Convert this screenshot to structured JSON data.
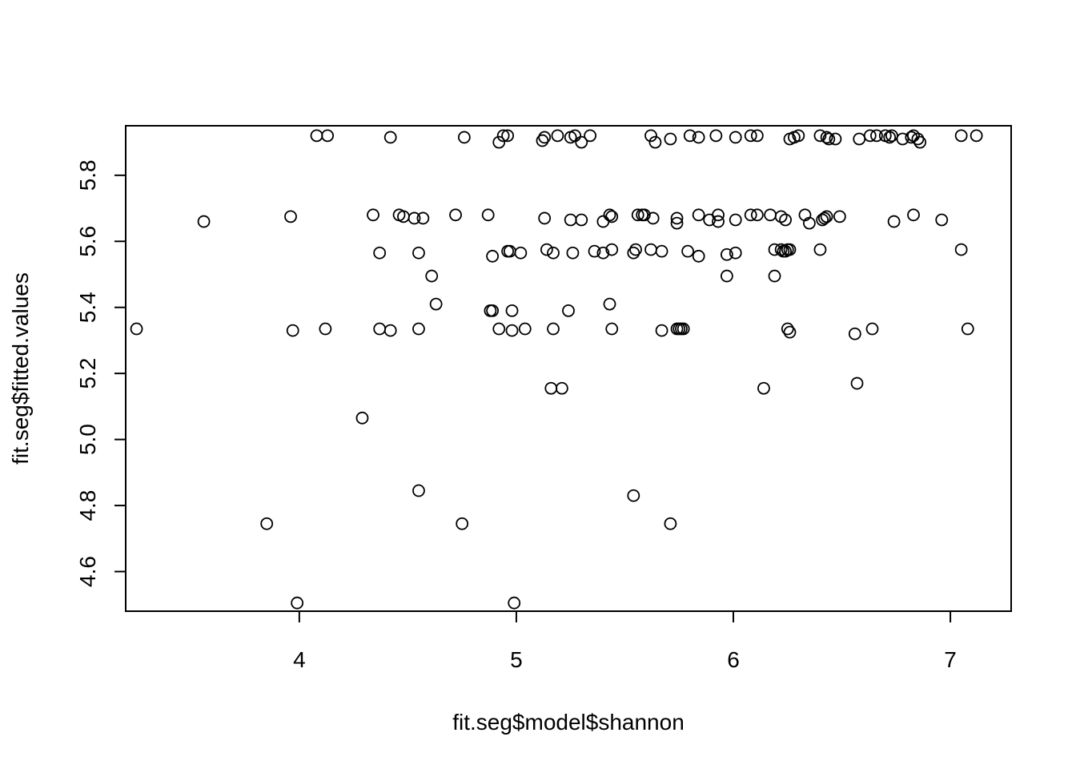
{
  "chart_data": {
    "type": "scatter",
    "title": "",
    "xlabel": "fit.seg$model$shannon",
    "ylabel": "fit.seg$fitted.values",
    "xlim": [
      3.2,
      7.28
    ],
    "ylim": [
      4.48,
      5.95
    ],
    "xticks": [
      4,
      5,
      6,
      7
    ],
    "yticks": [
      4.6,
      4.8,
      5.0,
      5.2,
      5.4,
      5.6,
      5.8
    ],
    "ytick_labels": [
      "4.6",
      "4.8",
      "5.0",
      "5.2",
      "5.4",
      "5.6",
      "5.8"
    ],
    "grid": false,
    "marker": "open-circle",
    "points": [
      [
        4.08,
        5.92
      ],
      [
        4.13,
        5.92
      ],
      [
        4.42,
        5.915
      ],
      [
        4.76,
        5.915
      ],
      [
        4.92,
        5.9
      ],
      [
        4.94,
        5.92
      ],
      [
        4.96,
        5.92
      ],
      [
        5.12,
        5.905
      ],
      [
        5.13,
        5.915
      ],
      [
        5.19,
        5.92
      ],
      [
        5.25,
        5.915
      ],
      [
        5.27,
        5.92
      ],
      [
        5.3,
        5.9
      ],
      [
        5.34,
        5.92
      ],
      [
        5.62,
        5.92
      ],
      [
        5.64,
        5.9
      ],
      [
        5.71,
        5.91
      ],
      [
        5.8,
        5.92
      ],
      [
        5.84,
        5.915
      ],
      [
        5.92,
        5.92
      ],
      [
        6.01,
        5.915
      ],
      [
        6.08,
        5.92
      ],
      [
        6.11,
        5.92
      ],
      [
        6.26,
        5.91
      ],
      [
        6.28,
        5.915
      ],
      [
        6.3,
        5.92
      ],
      [
        6.4,
        5.92
      ],
      [
        6.43,
        5.915
      ],
      [
        6.44,
        5.91
      ],
      [
        6.47,
        5.91
      ],
      [
        6.58,
        5.91
      ],
      [
        6.63,
        5.92
      ],
      [
        6.66,
        5.92
      ],
      [
        6.7,
        5.92
      ],
      [
        6.72,
        5.915
      ],
      [
        6.73,
        5.92
      ],
      [
        6.78,
        5.91
      ],
      [
        6.82,
        5.915
      ],
      [
        6.83,
        5.92
      ],
      [
        6.85,
        5.91
      ],
      [
        6.86,
        5.9
      ],
      [
        7.05,
        5.92
      ],
      [
        7.12,
        5.92
      ],
      [
        3.56,
        5.66
      ],
      [
        3.96,
        5.675
      ],
      [
        4.34,
        5.68
      ],
      [
        4.46,
        5.68
      ],
      [
        4.48,
        5.675
      ],
      [
        4.53,
        5.67
      ],
      [
        4.57,
        5.67
      ],
      [
        4.72,
        5.68
      ],
      [
        4.87,
        5.68
      ],
      [
        5.13,
        5.67
      ],
      [
        5.25,
        5.665
      ],
      [
        5.3,
        5.665
      ],
      [
        5.4,
        5.66
      ],
      [
        5.43,
        5.68
      ],
      [
        5.44,
        5.675
      ],
      [
        5.56,
        5.68
      ],
      [
        5.58,
        5.68
      ],
      [
        5.59,
        5.68
      ],
      [
        5.63,
        5.67
      ],
      [
        5.74,
        5.67
      ],
      [
        5.74,
        5.655
      ],
      [
        5.84,
        5.68
      ],
      [
        5.89,
        5.665
      ],
      [
        5.93,
        5.68
      ],
      [
        5.93,
        5.66
      ],
      [
        6.01,
        5.665
      ],
      [
        6.08,
        5.68
      ],
      [
        6.11,
        5.68
      ],
      [
        6.17,
        5.68
      ],
      [
        6.22,
        5.675
      ],
      [
        6.24,
        5.665
      ],
      [
        6.33,
        5.68
      ],
      [
        6.35,
        5.655
      ],
      [
        6.41,
        5.665
      ],
      [
        6.42,
        5.67
      ],
      [
        6.43,
        5.675
      ],
      [
        6.49,
        5.675
      ],
      [
        6.74,
        5.66
      ],
      [
        6.83,
        5.68
      ],
      [
        6.96,
        5.665
      ],
      [
        4.37,
        5.565
      ],
      [
        4.55,
        5.565
      ],
      [
        4.89,
        5.555
      ],
      [
        4.96,
        5.57
      ],
      [
        4.97,
        5.57
      ],
      [
        5.02,
        5.565
      ],
      [
        5.14,
        5.575
      ],
      [
        5.17,
        5.565
      ],
      [
        5.26,
        5.565
      ],
      [
        5.36,
        5.57
      ],
      [
        5.4,
        5.565
      ],
      [
        5.44,
        5.575
      ],
      [
        5.54,
        5.565
      ],
      [
        5.55,
        5.575
      ],
      [
        5.62,
        5.575
      ],
      [
        5.67,
        5.57
      ],
      [
        5.79,
        5.57
      ],
      [
        5.84,
        5.555
      ],
      [
        5.97,
        5.56
      ],
      [
        6.01,
        5.565
      ],
      [
        6.19,
        5.575
      ],
      [
        6.22,
        5.575
      ],
      [
        6.23,
        5.57
      ],
      [
        6.24,
        5.57
      ],
      [
        6.25,
        5.575
      ],
      [
        6.26,
        5.575
      ],
      [
        6.4,
        5.575
      ],
      [
        7.05,
        5.575
      ],
      [
        4.61,
        5.495
      ],
      [
        5.97,
        5.495
      ],
      [
        6.19,
        5.495
      ],
      [
        4.63,
        5.41
      ],
      [
        4.88,
        5.39
      ],
      [
        4.89,
        5.39
      ],
      [
        4.98,
        5.39
      ],
      [
        5.24,
        5.39
      ],
      [
        5.43,
        5.41
      ],
      [
        3.25,
        5.335
      ],
      [
        3.97,
        5.33
      ],
      [
        4.12,
        5.335
      ],
      [
        4.37,
        5.335
      ],
      [
        4.42,
        5.33
      ],
      [
        4.55,
        5.335
      ],
      [
        4.92,
        5.335
      ],
      [
        4.98,
        5.33
      ],
      [
        5.04,
        5.335
      ],
      [
        5.17,
        5.335
      ],
      [
        5.44,
        5.335
      ],
      [
        5.67,
        5.33
      ],
      [
        5.74,
        5.335
      ],
      [
        5.75,
        5.335
      ],
      [
        5.76,
        5.335
      ],
      [
        5.77,
        5.335
      ],
      [
        6.25,
        5.335
      ],
      [
        6.26,
        5.325
      ],
      [
        6.56,
        5.32
      ],
      [
        6.64,
        5.335
      ],
      [
        7.08,
        5.335
      ],
      [
        5.16,
        5.155
      ],
      [
        5.21,
        5.155
      ],
      [
        6.14,
        5.155
      ],
      [
        6.57,
        5.17
      ],
      [
        4.29,
        5.065
      ],
      [
        4.55,
        4.845
      ],
      [
        5.54,
        4.83
      ],
      [
        3.85,
        4.745
      ],
      [
        4.75,
        4.745
      ],
      [
        5.71,
        4.745
      ],
      [
        3.99,
        4.505
      ],
      [
        4.99,
        4.505
      ]
    ]
  }
}
